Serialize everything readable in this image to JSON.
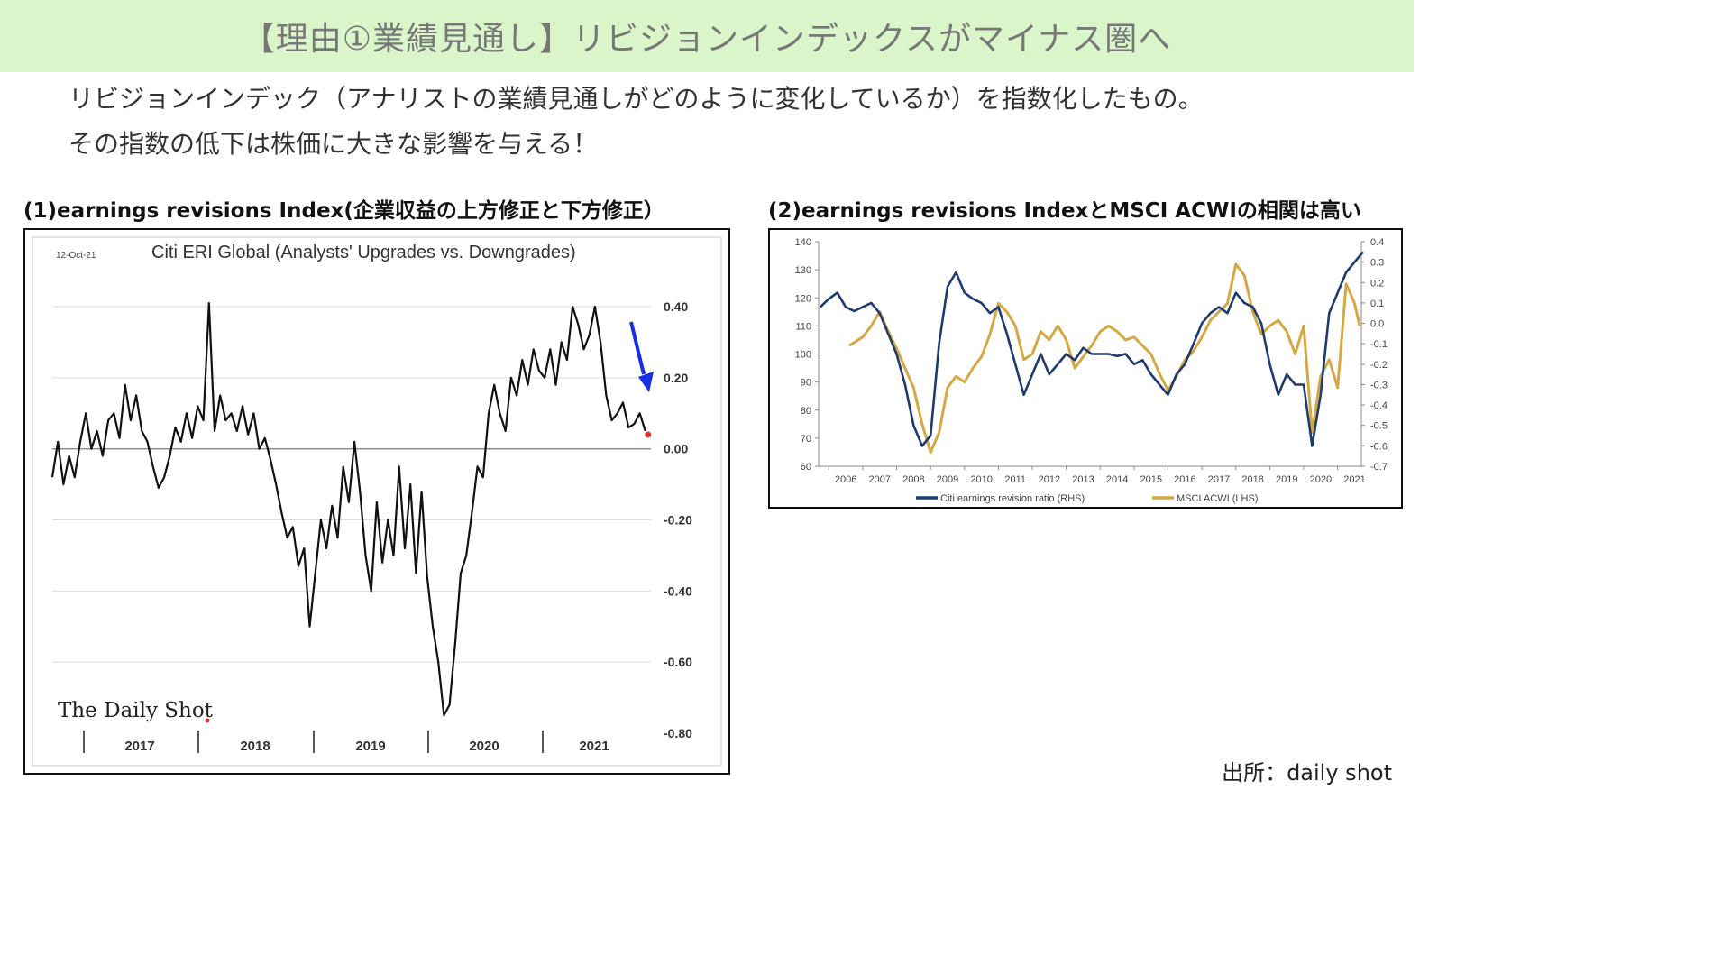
{
  "header": {
    "title": "【理由①業績見通し】リビジョンインデックスがマイナス圏へ",
    "description_line1": "リビジョンインデック（アナリストの業績見通しがどのように変化しているか）を指数化したもの。",
    "description_line2": "その指数の低下は株価に大きな影響を与える！"
  },
  "panel1": {
    "heading": "(1)earnings revisions Index(企業収益の上方修正と下方修正）"
  },
  "panel2": {
    "heading": "(2)earnings revisions IndexとMSCI ACWIの相関は高い"
  },
  "source": "出所：daily shot",
  "colors": {
    "title_bg": "#d9f5c9",
    "navy": "#1f3a6e",
    "gold": "#d4a843",
    "arrow": "#1730e6",
    "marker": "#e03030"
  },
  "chart_data": [
    {
      "type": "line",
      "title": "Citi ERI Global (Analysts' Upgrades vs. Downgrades)",
      "date_label": "12-Oct-21",
      "watermark": "The Daily Shot",
      "x_ticks": [
        "2017",
        "2018",
        "2019",
        "2020",
        "2021"
      ],
      "y_ticks": [
        "0.40",
        "0.20",
        "0.00",
        "-0.20",
        "-0.40",
        "-0.60",
        "-0.80"
      ],
      "ylim": [
        -0.8,
        0.4
      ],
      "xlim": [
        2016.5,
        2021.85
      ],
      "grid": true,
      "annotation": "down-arrow",
      "series": [
        {
          "x": [
            2016.5,
            2016.55,
            2016.6,
            2016.65,
            2016.7,
            2016.75,
            2016.8,
            2016.85,
            2016.9,
            2016.95,
            2017.0,
            2017.05,
            2017.1,
            2017.15,
            2017.2,
            2017.25,
            2017.3,
            2017.35,
            2017.4,
            2017.45,
            2017.5,
            2017.55,
            2017.6,
            2017.65,
            2017.7,
            2017.75,
            2017.8,
            2017.85,
            2017.9,
            2017.95,
            2018.0,
            2018.05,
            2018.1,
            2018.15,
            2018.2,
            2018.25,
            2018.3,
            2018.35,
            2018.4,
            2018.45,
            2018.5,
            2018.55,
            2018.6,
            2018.65,
            2018.7,
            2018.75,
            2018.8,
            2018.85,
            2018.9,
            2018.95,
            2019.0,
            2019.05,
            2019.1,
            2019.15,
            2019.2,
            2019.25,
            2019.3,
            2019.35,
            2019.4,
            2019.45,
            2019.5,
            2019.55,
            2019.6,
            2019.65,
            2019.7,
            2019.75,
            2019.8,
            2019.85,
            2019.9,
            2019.95,
            2020.0,
            2020.05,
            2020.1,
            2020.15,
            2020.2,
            2020.25,
            2020.3,
            2020.35,
            2020.4,
            2020.45,
            2020.5,
            2020.55,
            2020.6,
            2020.65,
            2020.7,
            2020.75,
            2020.8,
            2020.85,
            2020.9,
            2020.95,
            2021.0,
            2021.05,
            2021.1,
            2021.15,
            2021.2,
            2021.25,
            2021.3,
            2021.35,
            2021.4,
            2021.45,
            2021.5,
            2021.55,
            2021.6,
            2021.65,
            2021.7,
            2021.75,
            2021.8
          ],
          "y": [
            -0.08,
            0.02,
            -0.1,
            -0.02,
            -0.08,
            0.02,
            0.1,
            0.0,
            0.05,
            -0.02,
            0.08,
            0.1,
            0.03,
            0.18,
            0.08,
            0.15,
            0.05,
            0.02,
            -0.05,
            -0.11,
            -0.08,
            -0.02,
            0.06,
            0.02,
            0.1,
            0.03,
            0.12,
            0.08,
            0.41,
            0.05,
            0.15,
            0.08,
            0.1,
            0.05,
            0.12,
            0.04,
            0.1,
            0.0,
            0.03,
            -0.03,
            -0.1,
            -0.18,
            -0.25,
            -0.22,
            -0.33,
            -0.28,
            -0.5,
            -0.35,
            -0.2,
            -0.28,
            -0.16,
            -0.25,
            -0.05,
            -0.15,
            0.02,
            -0.12,
            -0.3,
            -0.4,
            -0.15,
            -0.32,
            -0.2,
            -0.3,
            -0.05,
            -0.28,
            -0.1,
            -0.35,
            -0.12,
            -0.36,
            -0.5,
            -0.6,
            -0.75,
            -0.72,
            -0.55,
            -0.35,
            -0.3,
            -0.18,
            -0.05,
            -0.08,
            0.1,
            0.18,
            0.1,
            0.05,
            0.2,
            0.15,
            0.25,
            0.18,
            0.28,
            0.22,
            0.2,
            0.28,
            0.18,
            0.3,
            0.25,
            0.4,
            0.35,
            0.28,
            0.32,
            0.4,
            0.3,
            0.15,
            0.08,
            0.1,
            0.13,
            0.06,
            0.07,
            0.1,
            0.05
          ]
        }
      ]
    },
    {
      "type": "line",
      "x_ticks": [
        "2006",
        "2007",
        "2008",
        "2009",
        "2010",
        "2011",
        "2012",
        "2013",
        "2014",
        "2015",
        "2016",
        "2017",
        "2018",
        "2019",
        "2020",
        "2021"
      ],
      "y_left_ticks": [
        "140",
        "130",
        "120",
        "110",
        "100",
        "90",
        "80",
        "70",
        "60"
      ],
      "y_right_ticks": [
        "0.4",
        "0.3",
        "0.2",
        "0.1",
        "0.0",
        "-0.1",
        "-0.2",
        "-0.3",
        "-0.4",
        "-0.5",
        "-0.6",
        "-0.7"
      ],
      "xlim": [
        2005.7,
        2021.7
      ],
      "ylim_left": [
        60,
        140
      ],
      "ylim_right": [
        -0.7,
        0.4
      ],
      "legend_position": "bottom",
      "series": [
        {
          "name": "Citi earnings revision ratio (RHS)",
          "axis": "right",
          "x": [
            2005.75,
            2006.0,
            2006.25,
            2006.5,
            2006.75,
            2007.0,
            2007.25,
            2007.5,
            2007.75,
            2008.0,
            2008.25,
            2008.5,
            2008.75,
            2009.0,
            2009.25,
            2009.5,
            2009.75,
            2010.0,
            2010.25,
            2010.5,
            2010.75,
            2011.0,
            2011.25,
            2011.5,
            2011.75,
            2012.0,
            2012.25,
            2012.5,
            2012.75,
            2013.0,
            2013.25,
            2013.5,
            2013.75,
            2014.0,
            2014.25,
            2014.5,
            2014.75,
            2015.0,
            2015.25,
            2015.5,
            2015.75,
            2016.0,
            2016.25,
            2016.5,
            2016.75,
            2017.0,
            2017.25,
            2017.5,
            2017.75,
            2018.0,
            2018.25,
            2018.5,
            2018.75,
            2019.0,
            2019.25,
            2019.5,
            2019.75,
            2020.0,
            2020.25,
            2020.5,
            2020.75,
            2021.0,
            2021.25,
            2021.5,
            2021.75
          ],
          "y": [
            0.08,
            0.12,
            0.15,
            0.08,
            0.06,
            0.08,
            0.1,
            0.05,
            -0.05,
            -0.15,
            -0.3,
            -0.5,
            -0.6,
            -0.55,
            -0.1,
            0.18,
            0.25,
            0.15,
            0.12,
            0.1,
            0.05,
            0.08,
            -0.05,
            -0.2,
            -0.35,
            -0.25,
            -0.15,
            -0.25,
            -0.2,
            -0.15,
            -0.18,
            -0.12,
            -0.15,
            -0.15,
            -0.15,
            -0.16,
            -0.15,
            -0.2,
            -0.18,
            -0.25,
            -0.3,
            -0.35,
            -0.25,
            -0.2,
            -0.1,
            0.0,
            0.05,
            0.08,
            0.05,
            0.15,
            0.1,
            0.08,
            0.0,
            -0.2,
            -0.35,
            -0.25,
            -0.3,
            -0.3,
            -0.6,
            -0.35,
            0.05,
            0.15,
            0.25,
            0.3,
            0.35
          ]
        },
        {
          "name": "MSCI ACWI (LHS)",
          "axis": "left",
          "x": [
            2006.6,
            2007.0,
            2007.25,
            2007.5,
            2007.75,
            2008.0,
            2008.25,
            2008.5,
            2008.75,
            2009.0,
            2009.25,
            2009.5,
            2009.75,
            2010.0,
            2010.25,
            2010.5,
            2010.75,
            2011.0,
            2011.25,
            2011.5,
            2011.75,
            2012.0,
            2012.25,
            2012.5,
            2012.75,
            2013.0,
            2013.25,
            2013.5,
            2013.75,
            2014.0,
            2014.25,
            2014.5,
            2014.75,
            2015.0,
            2015.25,
            2015.5,
            2015.75,
            2016.0,
            2016.25,
            2016.5,
            2016.75,
            2017.0,
            2017.25,
            2017.5,
            2017.75,
            2018.0,
            2018.25,
            2018.5,
            2018.75,
            2019.0,
            2019.25,
            2019.5,
            2019.75,
            2020.0,
            2020.25,
            2020.5,
            2020.75,
            2021.0,
            2021.25,
            2021.5,
            2021.65
          ],
          "y": [
            103,
            106,
            110,
            115,
            108,
            102,
            95,
            88,
            75,
            65,
            72,
            88,
            92,
            90,
            95,
            99,
            107,
            118,
            115,
            110,
            98,
            100,
            108,
            105,
            110,
            105,
            95,
            99,
            103,
            108,
            110,
            108,
            105,
            106,
            103,
            100,
            93,
            87,
            92,
            98,
            101,
            106,
            112,
            115,
            118,
            132,
            128,
            115,
            107,
            110,
            112,
            108,
            100,
            110,
            72,
            92,
            98,
            88,
            125,
            118,
            110
          ]
        }
      ]
    }
  ]
}
